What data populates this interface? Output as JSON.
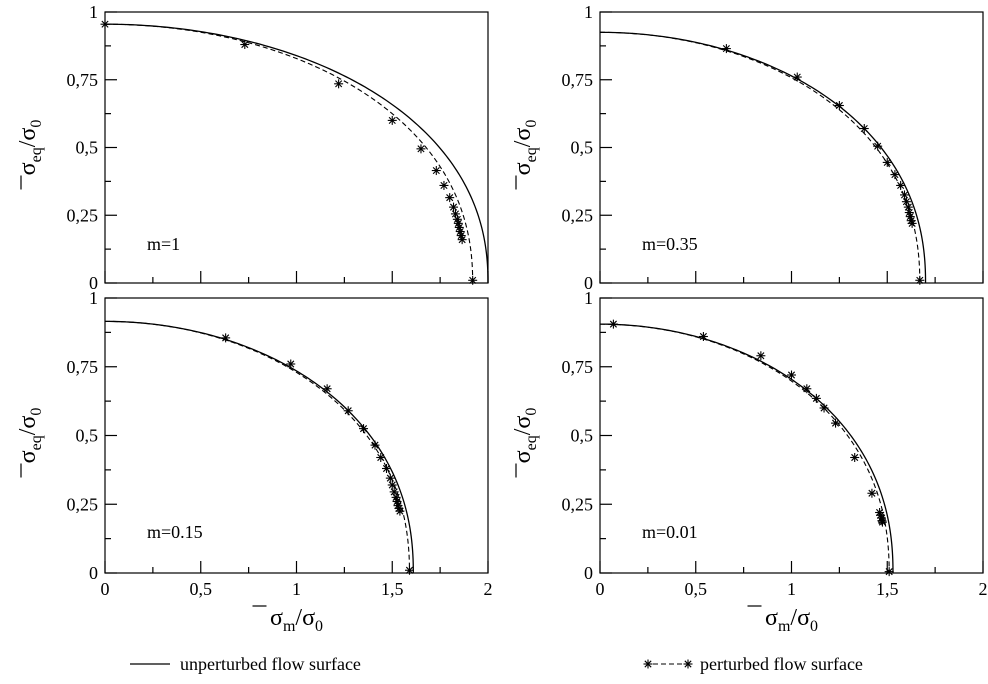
{
  "chart_data": [
    {
      "type": "line",
      "panel_label": "m=1",
      "xlim": [
        0,
        2
      ],
      "ylim": [
        0,
        1
      ],
      "x_ticks": [
        "0",
        "0,5",
        "1",
        "1,5",
        "2"
      ],
      "y_ticks": [
        "0",
        "0,25",
        "0,5",
        "0,75",
        "1"
      ],
      "show_x_tick_labels": false,
      "show_y_tick_labels": true,
      "xlabel": "",
      "ylabel": "σeq/σ0",
      "series": [
        {
          "name": "unperturbed flow surface",
          "style": "solid",
          "y0": 0.955,
          "x0": 2.0
        },
        {
          "name": "perturbed flow surface",
          "style": "dashed-star",
          "y0": 0.955,
          "x0": 1.92,
          "points": [
            [
              0.0,
              0.955
            ],
            [
              0.73,
              0.88
            ],
            [
              1.22,
              0.735
            ],
            [
              1.5,
              0.6
            ],
            [
              1.65,
              0.495
            ],
            [
              1.73,
              0.415
            ],
            [
              1.77,
              0.36
            ],
            [
              1.8,
              0.315
            ],
            [
              1.82,
              0.28
            ],
            [
              1.83,
              0.255
            ],
            [
              1.84,
              0.235
            ],
            [
              1.845,
              0.22
            ],
            [
              1.85,
              0.205
            ],
            [
              1.855,
              0.19
            ],
            [
              1.86,
              0.175
            ],
            [
              1.865,
              0.16
            ],
            [
              1.92,
              0.01
            ]
          ]
        }
      ]
    },
    {
      "type": "line",
      "panel_label": "m=0.35",
      "xlim": [
        0,
        2
      ],
      "ylim": [
        0,
        1
      ],
      "x_ticks": [
        "0",
        "0,5",
        "1",
        "1,5",
        "2"
      ],
      "y_ticks": [
        "0",
        "0,25",
        "0,5",
        "0,75",
        "1"
      ],
      "show_x_tick_labels": false,
      "show_y_tick_labels": true,
      "xlabel": "",
      "ylabel": "σeq/σ0",
      "series": [
        {
          "name": "unperturbed flow surface",
          "style": "solid",
          "y0": 0.925,
          "x0": 1.7
        },
        {
          "name": "perturbed flow surface",
          "style": "dashed-star",
          "y0": 0.925,
          "x0": 1.67,
          "points": [
            [
              0.66,
              0.865
            ],
            [
              1.03,
              0.76
            ],
            [
              1.25,
              0.655
            ],
            [
              1.38,
              0.57
            ],
            [
              1.45,
              0.505
            ],
            [
              1.5,
              0.445
            ],
            [
              1.54,
              0.4
            ],
            [
              1.57,
              0.36
            ],
            [
              1.59,
              0.325
            ],
            [
              1.6,
              0.3
            ],
            [
              1.61,
              0.28
            ],
            [
              1.615,
              0.26
            ],
            [
              1.62,
              0.245
            ],
            [
              1.625,
              0.23
            ],
            [
              1.63,
              0.22
            ],
            [
              1.67,
              0.01
            ]
          ]
        }
      ]
    },
    {
      "type": "line",
      "panel_label": "m=0.15",
      "xlim": [
        0,
        2
      ],
      "ylim": [
        0,
        1
      ],
      "x_ticks": [
        "0",
        "0,5",
        "1",
        "1,5",
        "2"
      ],
      "y_ticks": [
        "0",
        "0,25",
        "0,5",
        "0,75",
        "1"
      ],
      "show_x_tick_labels": true,
      "show_y_tick_labels": true,
      "xlabel": "σm/σ0",
      "ylabel": "σeq/σ0",
      "series": [
        {
          "name": "unperturbed flow surface",
          "style": "solid",
          "y0": 0.915,
          "x0": 1.61
        },
        {
          "name": "perturbed flow surface",
          "style": "dashed-star",
          "y0": 0.915,
          "x0": 1.59,
          "points": [
            [
              0.63,
              0.855
            ],
            [
              0.97,
              0.76
            ],
            [
              1.16,
              0.67
            ],
            [
              1.27,
              0.59
            ],
            [
              1.35,
              0.525
            ],
            [
              1.41,
              0.465
            ],
            [
              1.44,
              0.42
            ],
            [
              1.47,
              0.38
            ],
            [
              1.49,
              0.345
            ],
            [
              1.5,
              0.32
            ],
            [
              1.51,
              0.295
            ],
            [
              1.52,
              0.275
            ],
            [
              1.525,
              0.26
            ],
            [
              1.53,
              0.245
            ],
            [
              1.535,
              0.235
            ],
            [
              1.54,
              0.225
            ],
            [
              1.59,
              0.01
            ]
          ]
        }
      ]
    },
    {
      "type": "line",
      "panel_label": "m=0.01",
      "xlim": [
        0,
        2
      ],
      "ylim": [
        0,
        1
      ],
      "x_ticks": [
        "0",
        "0,5",
        "1",
        "1,5",
        "2"
      ],
      "y_ticks": [
        "0",
        "0,25",
        "0,5",
        "0,75",
        "1"
      ],
      "show_x_tick_labels": true,
      "show_y_tick_labels": true,
      "xlabel": "σm/σ0",
      "ylabel": "σeq/σ0",
      "series": [
        {
          "name": "unperturbed flow surface",
          "style": "solid",
          "y0": 0.905,
          "x0": 1.53
        },
        {
          "name": "perturbed flow surface",
          "style": "dashed-star",
          "y0": 0.905,
          "x0": 1.51,
          "points": [
            [
              0.07,
              0.905
            ],
            [
              0.54,
              0.86
            ],
            [
              0.84,
              0.79
            ],
            [
              1.0,
              0.72
            ],
            [
              1.08,
              0.67
            ],
            [
              1.13,
              0.635
            ],
            [
              1.17,
              0.6
            ],
            [
              1.23,
              0.545
            ],
            [
              1.33,
              0.42
            ],
            [
              1.42,
              0.29
            ],
            [
              1.46,
              0.22
            ],
            [
              1.465,
              0.21
            ],
            [
              1.47,
              0.2
            ],
            [
              1.472,
              0.19
            ],
            [
              1.475,
              0.185
            ],
            [
              1.51,
              0.005
            ]
          ]
        }
      ]
    }
  ],
  "legend": {
    "solid_label": "unperturbed flow surface",
    "dashed_label": "perturbed flow surface"
  }
}
